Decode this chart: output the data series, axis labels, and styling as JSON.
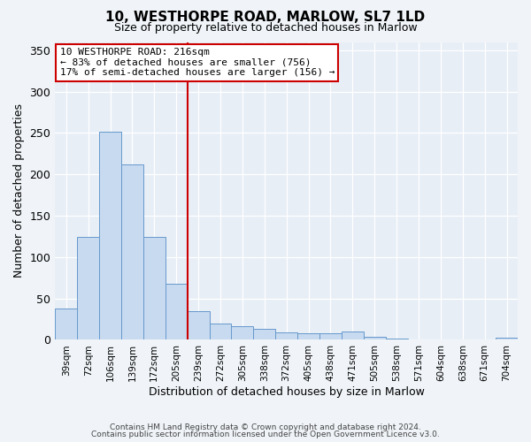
{
  "title": "10, WESTHORPE ROAD, MARLOW, SL7 1LD",
  "subtitle": "Size of property relative to detached houses in Marlow",
  "xlabel": "Distribution of detached houses by size in Marlow",
  "ylabel": "Number of detached properties",
  "bar_labels": [
    "39sqm",
    "72sqm",
    "106sqm",
    "139sqm",
    "172sqm",
    "205sqm",
    "239sqm",
    "272sqm",
    "305sqm",
    "338sqm",
    "372sqm",
    "405sqm",
    "438sqm",
    "471sqm",
    "505sqm",
    "538sqm",
    "571sqm",
    "604sqm",
    "638sqm",
    "671sqm",
    "704sqm"
  ],
  "bar_heights": [
    38,
    124,
    252,
    212,
    124,
    68,
    35,
    20,
    16,
    13,
    9,
    8,
    8,
    10,
    4,
    2,
    1,
    0.5,
    0.5,
    0.3,
    3
  ],
  "bar_color": "#c8daf0",
  "bar_edge_color": "#6699cc",
  "vline_x": 5.5,
  "vline_color": "#cc0000",
  "ylim": [
    0,
    360
  ],
  "yticks": [
    0,
    50,
    100,
    150,
    200,
    250,
    300,
    350
  ],
  "annotation_title": "10 WESTHORPE ROAD: 216sqm",
  "annotation_line1": "← 83% of detached houses are smaller (756)",
  "annotation_line2": "17% of semi-detached houses are larger (156) →",
  "annotation_box_color": "#cc0000",
  "footer1": "Contains HM Land Registry data © Crown copyright and database right 2024.",
  "footer2": "Contains public sector information licensed under the Open Government Licence v3.0.",
  "bg_color": "#f0f4f8",
  "plot_bg_color": "#e8eef6"
}
